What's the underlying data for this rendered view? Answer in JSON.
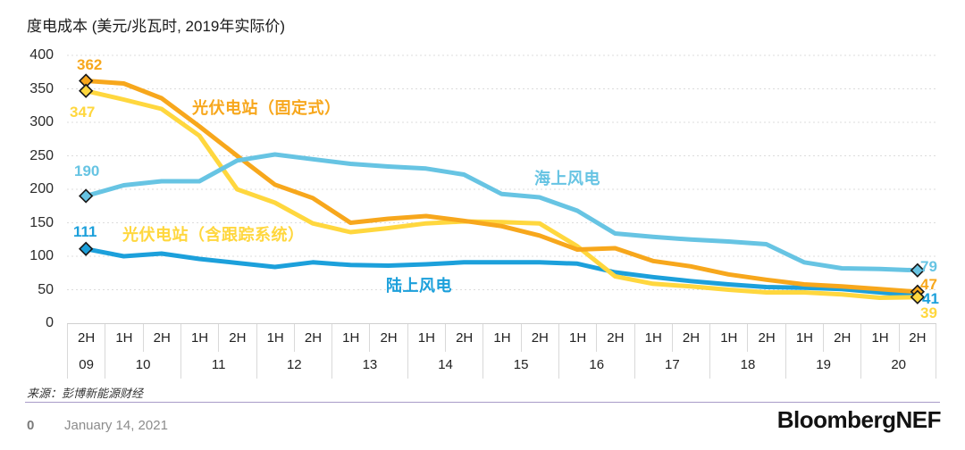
{
  "title": "度电成本 (美元/兆瓦时, 2019年实际价)",
  "source": "来源：彭博新能源财经",
  "footer": {
    "page_number": "0",
    "date": "January 14, 2021",
    "logo": "BloombergNEF"
  },
  "chart_data": {
    "type": "line",
    "title": "度电成本 (美元/兆瓦时, 2019年实际价)",
    "ylabel": "美元/兆瓦时 (2019年实际价)",
    "ylim": [
      0,
      400
    ],
    "yticks": [
      400,
      350,
      300,
      250,
      200,
      150,
      100,
      50,
      0
    ],
    "grid": true,
    "legend_position": "inline-labels",
    "categories": [
      "2H09",
      "1H10",
      "2H10",
      "1H11",
      "2H11",
      "1H12",
      "2H12",
      "1H13",
      "2H13",
      "1H14",
      "2H14",
      "1H15",
      "2H15",
      "1H16",
      "2H16",
      "1H17",
      "2H17",
      "1H18",
      "2H18",
      "1H19",
      "2H19",
      "1H20",
      "2H20"
    ],
    "x_axis": {
      "half_labels": [
        "2H",
        "1H",
        "2H",
        "1H",
        "2H",
        "1H",
        "2H",
        "1H",
        "2H",
        "1H",
        "2H",
        "1H",
        "2H",
        "1H",
        "2H",
        "1H",
        "2H",
        "1H",
        "2H",
        "1H",
        "2H",
        "1H",
        "2H"
      ],
      "years": [
        "09",
        "10",
        "11",
        "12",
        "13",
        "14",
        "15",
        "16",
        "17",
        "18",
        "19",
        "20"
      ]
    },
    "series": [
      {
        "id": "fixed-pv",
        "name": "光伏电站（固定式）",
        "color": "#F7A71C",
        "start_label": "362",
        "end_label": "47",
        "values": [
          362,
          358,
          336,
          294,
          250,
          207,
          187,
          150,
          156,
          160,
          153,
          145,
          131,
          110,
          112,
          93,
          85,
          73,
          65,
          58,
          55,
          51,
          47
        ]
      },
      {
        "id": "tracking-pv",
        "name": "光伏电站（含跟踪系统）",
        "color": "#FFD73E",
        "start_label": "347",
        "end_label": "39",
        "values": [
          347,
          334,
          320,
          280,
          200,
          180,
          149,
          136,
          142,
          149,
          152,
          151,
          149,
          115,
          70,
          59,
          55,
          50,
          46,
          46,
          43,
          38,
          39
        ]
      },
      {
        "id": "offshore-wind",
        "name": "海上风电",
        "color": "#67C4E3",
        "start_label": "190",
        "end_label": "79",
        "values": [
          190,
          206,
          212,
          212,
          243,
          252,
          245,
          238,
          234,
          231,
          222,
          193,
          188,
          168,
          134,
          129,
          125,
          122,
          118,
          91,
          82,
          81,
          79
        ]
      },
      {
        "id": "onshore-wind",
        "name": "陆上风电",
        "color": "#1CA0DB",
        "start_label": "111",
        "end_label": "41",
        "values": [
          111,
          100,
          104,
          96,
          90,
          84,
          91,
          87,
          86,
          88,
          91,
          91,
          91,
          89,
          76,
          69,
          63,
          58,
          54,
          53,
          51,
          46,
          41
        ]
      }
    ]
  }
}
